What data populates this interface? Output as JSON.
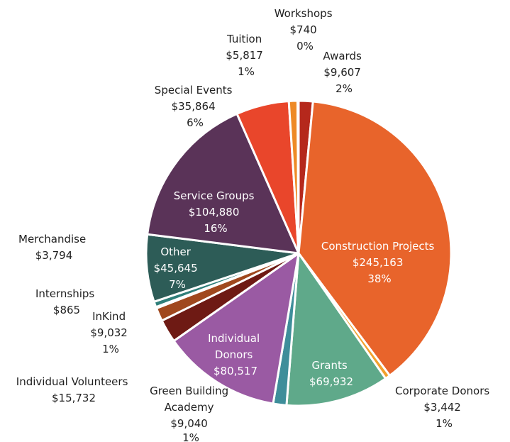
{
  "chart_data": {
    "type": "pie",
    "title": "",
    "slices": [
      {
        "name": "Awards",
        "value": 9607,
        "value_label": "$9,607",
        "pct_label": "2%",
        "color": "#b5281c"
      },
      {
        "name": "Construction Projects",
        "value": 245163,
        "value_label": "$245,163",
        "pct_label": "38%",
        "color": "#e8642b"
      },
      {
        "name": "Corporate Donors",
        "value": 3442,
        "value_label": "$3,442",
        "pct_label": "1%",
        "color": "#f2a12e"
      },
      {
        "name": "Grants",
        "value": 69932,
        "value_label": "$69,932",
        "pct_label": "",
        "color": "#5fa98a"
      },
      {
        "name": "Green Building Academy",
        "value": 9040,
        "value_label": "$9,040",
        "pct_label": "1%",
        "color": "#3e8e9a"
      },
      {
        "name": "Individual Donors",
        "value": 80517,
        "value_label": "$80,517",
        "pct_label": "",
        "color": "#9a5aa3"
      },
      {
        "name": "Individual Volunteers",
        "value": 15732,
        "value_label": "$15,732",
        "pct_label": "",
        "color": "#6e1a14"
      },
      {
        "name": "InKind",
        "value": 9032,
        "value_label": "$9,032",
        "pct_label": "1%",
        "color": "#a0481e"
      },
      {
        "name": "Internships",
        "value": 865,
        "value_label": "$865",
        "pct_label": "",
        "color": "#d98a3a"
      },
      {
        "name": "Merchandise",
        "value": 3794,
        "value_label": "$3,794",
        "pct_label": "",
        "color": "#2f7f7a"
      },
      {
        "name": "Other",
        "value": 45645,
        "value_label": "$45,645",
        "pct_label": "7%",
        "color": "#2d5c57"
      },
      {
        "name": "Service Groups",
        "value": 104880,
        "value_label": "$104,880",
        "pct_label": "16%",
        "color": "#5a3358"
      },
      {
        "name": "Special Events",
        "value": 35864,
        "value_label": "$35,864",
        "pct_label": "6%",
        "color": "#e9462b"
      },
      {
        "name": "Tuition",
        "value": 5817,
        "value_label": "$5,817",
        "pct_label": "1%",
        "color": "#ee8a26"
      },
      {
        "name": "Workshops",
        "value": 740,
        "value_label": "$740",
        "pct_label": "0%",
        "color": "#d99a30"
      }
    ],
    "labels": {
      "awards": {
        "name": "Awards",
        "value": "$9,607",
        "pct": "2%"
      },
      "construction": {
        "name": "Construction Projects",
        "value": "$245,163",
        "pct": "38%"
      },
      "corporate": {
        "name": "Corporate Donors",
        "value": "$3,442",
        "pct": "1%"
      },
      "grants": {
        "name": "Grants",
        "value": "$69,932"
      },
      "gba": {
        "line1": "Green Building",
        "line2": "Academy",
        "value": "$9,040",
        "pct": "1%"
      },
      "individual_donors": {
        "line1": "Individual",
        "line2": "Donors",
        "value": "$80,517"
      },
      "individual_volunteers": {
        "name": "Individual Volunteers",
        "value": "$15,732"
      },
      "inkind": {
        "name": "InKind",
        "value": "$9,032",
        "pct": "1%"
      },
      "internships": {
        "name": "Internships",
        "value": "$865"
      },
      "merchandise": {
        "name": "Merchandise",
        "value": "$3,794"
      },
      "other": {
        "name": "Other",
        "value": "$45,645",
        "pct": "7%"
      },
      "service_groups": {
        "name": "Service Groups",
        "value": "$104,880",
        "pct": "16%"
      },
      "special_events": {
        "name": "Special Events",
        "value": "$35,864",
        "pct": "6%"
      },
      "tuition": {
        "name": "Tuition",
        "value": "$5,817",
        "pct": "1%"
      },
      "workshops": {
        "name": "Workshops",
        "value": "$740",
        "pct": "0%"
      }
    }
  }
}
